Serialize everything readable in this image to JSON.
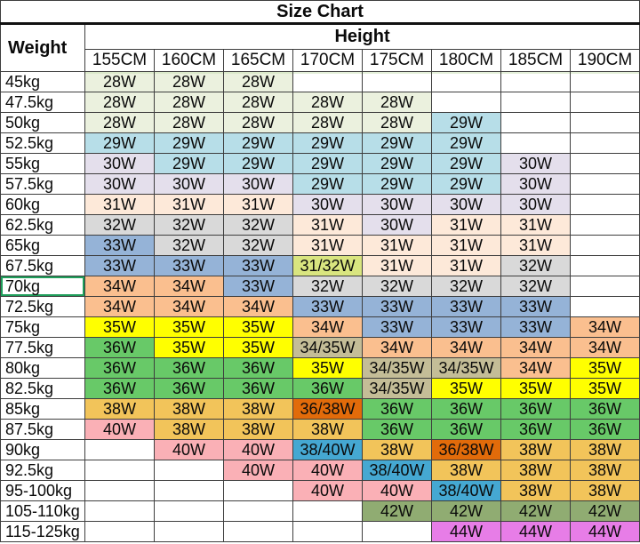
{
  "title": "Size Chart",
  "header": {
    "weight_label": "Weight",
    "height_label": "Height",
    "columns": [
      "155CM",
      "160CM",
      "165CM",
      "170CM",
      "175CM",
      "180CM",
      "185CM",
      "190CM"
    ]
  },
  "colors": {
    "lightGreen": "#EBF1DE",
    "lightBlue": "#B7DEE8",
    "lavender": "#E4DFEC",
    "peach": "#FDE9D9",
    "gray": "#D9D9D9",
    "steelBlue": "#95B3D7",
    "salmon": "#FABF8F",
    "yellow": "#FFFF00",
    "khaki": "#C4BD97",
    "green": "#68C968",
    "yellowGreen": "#D9E57F",
    "gold": "#F2C45A",
    "darkOrange": "#E26B0A",
    "pink": "#FAB0B6",
    "cyan": "#45A8D2",
    "olive": "#90AC72",
    "violet": "#E77DE7"
  },
  "selection": {
    "row_label": "70kg",
    "border_color": "#1E9E5A"
  },
  "table": {
    "rows": [
      {
        "label": "45kg",
        "cells": [
          {
            "v": "28W",
            "c": "lightGreen"
          },
          {
            "v": "28W",
            "c": "lightGreen"
          },
          {
            "v": "28W",
            "c": "lightGreen"
          },
          null,
          null,
          null,
          null,
          null
        ]
      },
      {
        "label": "47.5kg",
        "cells": [
          {
            "v": "28W",
            "c": "lightGreen"
          },
          {
            "v": "28W",
            "c": "lightGreen"
          },
          {
            "v": "28W",
            "c": "lightGreen"
          },
          {
            "v": "28W",
            "c": "lightGreen"
          },
          {
            "v": "28W",
            "c": "lightGreen"
          },
          null,
          null,
          null
        ]
      },
      {
        "label": "50kg",
        "cells": [
          {
            "v": "28W",
            "c": "lightGreen"
          },
          {
            "v": "28W",
            "c": "lightGreen"
          },
          {
            "v": "28W",
            "c": "lightGreen"
          },
          {
            "v": "28W",
            "c": "lightGreen"
          },
          {
            "v": "28W",
            "c": "lightGreen"
          },
          {
            "v": "29W",
            "c": "lightBlue"
          },
          null,
          null
        ]
      },
      {
        "label": "52.5kg",
        "cells": [
          {
            "v": "29W",
            "c": "lightBlue"
          },
          {
            "v": "29W",
            "c": "lightBlue"
          },
          {
            "v": "29W",
            "c": "lightBlue"
          },
          {
            "v": "29W",
            "c": "lightBlue"
          },
          {
            "v": "29W",
            "c": "lightBlue"
          },
          {
            "v": "29W",
            "c": "lightBlue"
          },
          null,
          null
        ]
      },
      {
        "label": "55kg",
        "cells": [
          {
            "v": "30W",
            "c": "lavender"
          },
          {
            "v": "29W",
            "c": "lightBlue"
          },
          {
            "v": "29W",
            "c": "lightBlue"
          },
          {
            "v": "29W",
            "c": "lightBlue"
          },
          {
            "v": "29W",
            "c": "lightBlue"
          },
          {
            "v": "29W",
            "c": "lightBlue"
          },
          {
            "v": "30W",
            "c": "lavender"
          },
          null
        ]
      },
      {
        "label": "57.5kg",
        "cells": [
          {
            "v": "30W",
            "c": "lavender"
          },
          {
            "v": "30W",
            "c": "lavender"
          },
          {
            "v": "30W",
            "c": "lavender"
          },
          {
            "v": "29W",
            "c": "lightBlue"
          },
          {
            "v": "29W",
            "c": "lightBlue"
          },
          {
            "v": "29W",
            "c": "lightBlue"
          },
          {
            "v": "30W",
            "c": "lavender"
          },
          null
        ]
      },
      {
        "label": "60kg",
        "cells": [
          {
            "v": "31W",
            "c": "peach"
          },
          {
            "v": "31W",
            "c": "peach"
          },
          {
            "v": "31W",
            "c": "peach"
          },
          {
            "v": "30W",
            "c": "lavender"
          },
          {
            "v": "30W",
            "c": "lavender"
          },
          {
            "v": "30W",
            "c": "lavender"
          },
          {
            "v": "30W",
            "c": "lavender"
          },
          null
        ]
      },
      {
        "label": "62.5kg",
        "cells": [
          {
            "v": "32W",
            "c": "gray"
          },
          {
            "v": "32W",
            "c": "gray"
          },
          {
            "v": "32W",
            "c": "gray"
          },
          {
            "v": "31W",
            "c": "peach"
          },
          {
            "v": "30W",
            "c": "lavender"
          },
          {
            "v": "31W",
            "c": "peach"
          },
          {
            "v": "31W",
            "c": "peach"
          },
          null
        ]
      },
      {
        "label": "65kg",
        "cells": [
          {
            "v": "33W",
            "c": "steelBlue"
          },
          {
            "v": "32W",
            "c": "gray"
          },
          {
            "v": "32W",
            "c": "gray"
          },
          {
            "v": "31W",
            "c": "peach"
          },
          {
            "v": "31W",
            "c": "peach"
          },
          {
            "v": "31W",
            "c": "peach"
          },
          {
            "v": "31W",
            "c": "peach"
          },
          null
        ]
      },
      {
        "label": "67.5kg",
        "cells": [
          {
            "v": "33W",
            "c": "steelBlue"
          },
          {
            "v": "33W",
            "c": "steelBlue"
          },
          {
            "v": "33W",
            "c": "steelBlue"
          },
          {
            "v": "31/32W",
            "c": "yellowGreen"
          },
          {
            "v": "31W",
            "c": "peach"
          },
          {
            "v": "31W",
            "c": "peach"
          },
          {
            "v": "32W",
            "c": "gray"
          },
          null
        ]
      },
      {
        "label": "70kg",
        "cells": [
          {
            "v": "34W",
            "c": "salmon"
          },
          {
            "v": "34W",
            "c": "salmon"
          },
          {
            "v": "33W",
            "c": "steelBlue"
          },
          {
            "v": "32W",
            "c": "gray"
          },
          {
            "v": "32W",
            "c": "gray"
          },
          {
            "v": "32W",
            "c": "gray"
          },
          {
            "v": "32W",
            "c": "gray"
          },
          null
        ]
      },
      {
        "label": "72.5kg",
        "cells": [
          {
            "v": "34W",
            "c": "salmon"
          },
          {
            "v": "34W",
            "c": "salmon"
          },
          {
            "v": "34W",
            "c": "salmon"
          },
          {
            "v": "33W",
            "c": "steelBlue"
          },
          {
            "v": "33W",
            "c": "steelBlue"
          },
          {
            "v": "33W",
            "c": "steelBlue"
          },
          {
            "v": "33W",
            "c": "steelBlue"
          },
          null
        ]
      },
      {
        "label": "75kg",
        "cells": [
          {
            "v": "35W",
            "c": "yellow"
          },
          {
            "v": "35W",
            "c": "yellow"
          },
          {
            "v": "35W",
            "c": "yellow"
          },
          {
            "v": "34W",
            "c": "salmon"
          },
          {
            "v": "33W",
            "c": "steelBlue"
          },
          {
            "v": "33W",
            "c": "steelBlue"
          },
          {
            "v": "33W",
            "c": "steelBlue"
          },
          {
            "v": "34W",
            "c": "salmon"
          }
        ]
      },
      {
        "label": "77.5kg",
        "cells": [
          {
            "v": "36W",
            "c": "green"
          },
          {
            "v": "35W",
            "c": "yellow"
          },
          {
            "v": "35W",
            "c": "yellow"
          },
          {
            "v": "34/35W",
            "c": "khaki"
          },
          {
            "v": "34W",
            "c": "salmon"
          },
          {
            "v": "34W",
            "c": "salmon"
          },
          {
            "v": "34W",
            "c": "salmon"
          },
          {
            "v": "34W",
            "c": "salmon"
          }
        ]
      },
      {
        "label": "80kg",
        "cells": [
          {
            "v": "36W",
            "c": "green"
          },
          {
            "v": "36W",
            "c": "green"
          },
          {
            "v": "36W",
            "c": "green"
          },
          {
            "v": "35W",
            "c": "yellow"
          },
          {
            "v": "34/35W",
            "c": "khaki"
          },
          {
            "v": "34/35W",
            "c": "khaki"
          },
          {
            "v": "34W",
            "c": "salmon"
          },
          {
            "v": "35W",
            "c": "yellow"
          }
        ]
      },
      {
        "label": "82.5kg",
        "cells": [
          {
            "v": "36W",
            "c": "green"
          },
          {
            "v": "36W",
            "c": "green"
          },
          {
            "v": "36W",
            "c": "green"
          },
          {
            "v": "36W",
            "c": "green"
          },
          {
            "v": "34/35W",
            "c": "khaki"
          },
          {
            "v": "35W",
            "c": "yellow"
          },
          {
            "v": "35W",
            "c": "yellow"
          },
          {
            "v": "35W",
            "c": "yellow"
          }
        ]
      },
      {
        "label": "85kg",
        "cells": [
          {
            "v": "38W",
            "c": "gold"
          },
          {
            "v": "38W",
            "c": "gold"
          },
          {
            "v": "38W",
            "c": "gold"
          },
          {
            "v": "36/38W",
            "c": "darkOrange"
          },
          {
            "v": "36W",
            "c": "green"
          },
          {
            "v": "36W",
            "c": "green"
          },
          {
            "v": "36W",
            "c": "green"
          },
          {
            "v": "36W",
            "c": "green"
          }
        ]
      },
      {
        "label": "87.5kg",
        "cells": [
          {
            "v": "40W",
            "c": "pink"
          },
          {
            "v": "38W",
            "c": "gold"
          },
          {
            "v": "38W",
            "c": "gold"
          },
          {
            "v": "38W",
            "c": "gold"
          },
          {
            "v": "36W",
            "c": "green"
          },
          {
            "v": "36W",
            "c": "green"
          },
          {
            "v": "36W",
            "c": "green"
          },
          {
            "v": "36W",
            "c": "green"
          }
        ]
      },
      {
        "label": "90kg",
        "cells": [
          null,
          {
            "v": "40W",
            "c": "pink"
          },
          {
            "v": "40W",
            "c": "pink"
          },
          {
            "v": "38/40W",
            "c": "cyan"
          },
          {
            "v": "38W",
            "c": "gold"
          },
          {
            "v": "36/38W",
            "c": "darkOrange"
          },
          {
            "v": "38W",
            "c": "gold"
          },
          {
            "v": "38W",
            "c": "gold"
          }
        ]
      },
      {
        "label": "92.5kg",
        "cells": [
          null,
          null,
          {
            "v": "40W",
            "c": "pink"
          },
          {
            "v": "40W",
            "c": "pink"
          },
          {
            "v": "38/40W",
            "c": "cyan"
          },
          {
            "v": "38W",
            "c": "gold"
          },
          {
            "v": "38W",
            "c": "gold"
          },
          {
            "v": "38W",
            "c": "gold"
          }
        ]
      },
      {
        "label": "95-100kg",
        "cells": [
          null,
          null,
          null,
          {
            "v": "40W",
            "c": "pink"
          },
          {
            "v": "40W",
            "c": "pink"
          },
          {
            "v": "38/40W",
            "c": "cyan"
          },
          {
            "v": "38W",
            "c": "gold"
          },
          {
            "v": "38W",
            "c": "gold"
          }
        ]
      },
      {
        "label": "105-110kg",
        "cells": [
          null,
          null,
          null,
          null,
          {
            "v": "42W",
            "c": "olive"
          },
          {
            "v": "42W",
            "c": "olive"
          },
          {
            "v": "42W",
            "c": "olive"
          },
          {
            "v": "42W",
            "c": "olive"
          }
        ]
      },
      {
        "label": "115-125kg",
        "cells": [
          null,
          null,
          null,
          null,
          null,
          {
            "v": "44W",
            "c": "violet"
          },
          {
            "v": "44W",
            "c": "violet"
          },
          {
            "v": "44W",
            "c": "violet"
          }
        ]
      }
    ]
  }
}
